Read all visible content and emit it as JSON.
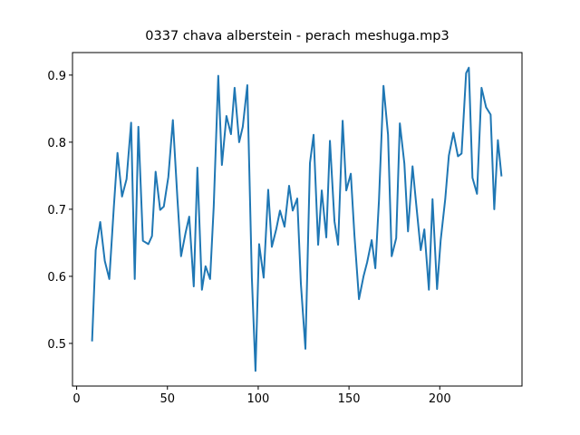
{
  "chart_data": {
    "type": "line",
    "title": "0337 chava alberstein - perach meshuga.mp3",
    "x": [
      8.5,
      10.5,
      13,
      15.5,
      18,
      20.5,
      22.5,
      25,
      27.5,
      30,
      32,
      34,
      36.5,
      39.5,
      41.5,
      43.5,
      46,
      48,
      50.5,
      53,
      55.5,
      57.5,
      60,
      62,
      64.5,
      66.5,
      69,
      71,
      73.5,
      75.5,
      78,
      80,
      82.5,
      85,
      87,
      89.5,
      91.5,
      94,
      96.5,
      98.5,
      100.5,
      103,
      105.5,
      107.5,
      110,
      112,
      114.5,
      117,
      119,
      121.5,
      123.5,
      126,
      128.5,
      130.5,
      133,
      135,
      137.5,
      139.5,
      142,
      144,
      146.5,
      148.5,
      151,
      153,
      155.5,
      158,
      160,
      162.5,
      164.5,
      166.5,
      169,
      171.5,
      173.5,
      176,
      178,
      180.5,
      182.5,
      185,
      187,
      189.5,
      191.5,
      194,
      196,
      198.5,
      200.5,
      203,
      205,
      207.5,
      210,
      212,
      214.5,
      216,
      218,
      220.5,
      223,
      225.5,
      228,
      230,
      232,
      234
    ],
    "series": [
      {
        "color": "#1f77b4",
        "values": [
          0.503,
          0.639,
          0.681,
          0.623,
          0.596,
          0.704,
          0.784,
          0.719,
          0.745,
          0.829,
          0.596,
          0.823,
          0.653,
          0.648,
          0.66,
          0.756,
          0.699,
          0.704,
          0.748,
          0.833,
          0.716,
          0.63,
          0.665,
          0.689,
          0.585,
          0.762,
          0.58,
          0.615,
          0.596,
          0.704,
          0.899,
          0.766,
          0.839,
          0.812,
          0.881,
          0.8,
          0.823,
          0.885,
          0.598,
          0.459,
          0.648,
          0.598,
          0.729,
          0.644,
          0.671,
          0.698,
          0.674,
          0.735,
          0.698,
          0.716,
          0.589,
          0.492,
          0.769,
          0.811,
          0.647,
          0.728,
          0.658,
          0.802,
          0.682,
          0.647,
          0.832,
          0.728,
          0.753,
          0.661,
          0.566,
          0.6,
          0.621,
          0.654,
          0.612,
          0.713,
          0.884,
          0.811,
          0.63,
          0.657,
          0.828,
          0.768,
          0.667,
          0.764,
          0.708,
          0.639,
          0.67,
          0.58,
          0.715,
          0.581,
          0.654,
          0.715,
          0.78,
          0.814,
          0.779,
          0.783,
          0.903,
          0.911,
          0.747,
          0.723,
          0.881,
          0.852,
          0.841,
          0.7,
          0.803,
          0.749
        ]
      }
    ],
    "xlim": [
      -2.28,
      245.28
    ],
    "xticks": [
      0,
      50,
      100,
      150,
      200
    ],
    "ylim": [
      0.4364,
      0.9336
    ],
    "yticks": [
      0.5,
      0.6,
      0.7,
      0.8,
      0.9
    ]
  }
}
